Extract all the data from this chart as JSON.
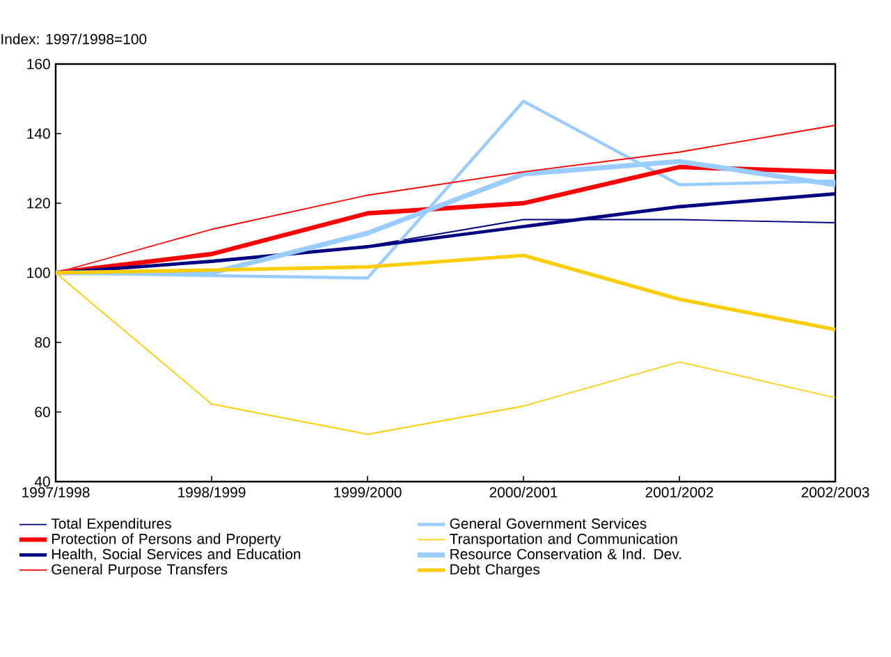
{
  "chart_data": {
    "type": "line",
    "ylabel": "Index: 1997/1998=100",
    "categories": [
      "1997/1998",
      "1998/1999",
      "1999/2000",
      "2000/2001",
      "2001/2002",
      "2002/2003"
    ],
    "ylim": [
      40,
      160
    ],
    "yticks": [
      40,
      60,
      80,
      100,
      120,
      140,
      160
    ],
    "legend": "bottom",
    "grid": false,
    "marker": "none",
    "line_style": "solid",
    "series": [
      {
        "name": "Total Expenditures",
        "color": "#000080",
        "values": [
          100,
          103.5,
          107.7,
          115.3,
          115.3,
          114.4
        ]
      },
      {
        "name": "General Government Services",
        "color": "#99ccff",
        "values": [
          100,
          99.2,
          98.5,
          149.3,
          125.3,
          126.4
        ]
      },
      {
        "name": "Protection of Persons and Property",
        "color": "#ff0000",
        "values": [
          100,
          105.4,
          117.1,
          120,
          130.4,
          129
        ]
      },
      {
        "name": "Transportation and Communication",
        "color": "#ffcc00",
        "values": [
          100,
          62.3,
          53.6,
          61.7,
          74.4,
          64.1
        ]
      },
      {
        "name": "Health, Social Services and Education",
        "color": "#000080",
        "values": [
          100,
          103.3,
          107.5,
          113.3,
          119,
          122.7
        ]
      },
      {
        "name": "Resource Conservation & Ind. Dev.",
        "color": "#99ccff",
        "values": [
          100,
          100,
          111.4,
          128.4,
          132,
          125.3
        ]
      },
      {
        "name": "General Purpose Transfers",
        "color": "#ff0000",
        "values": [
          100,
          112.5,
          122.3,
          129,
          134.7,
          142.4
        ]
      },
      {
        "name": "Debt Charges",
        "color": "#ffcc00",
        "values": [
          100,
          100.8,
          101.7,
          105,
          92.4,
          83.7
        ]
      }
    ]
  }
}
